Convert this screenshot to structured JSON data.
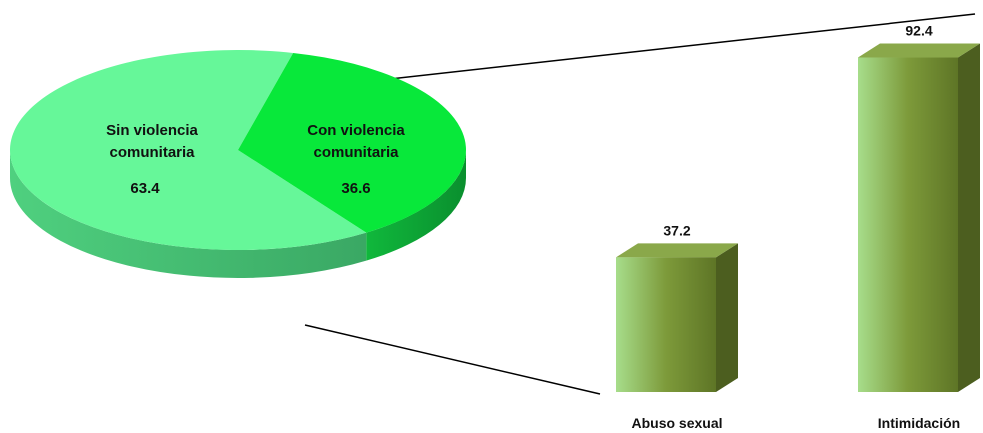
{
  "chart_data": [
    {
      "type": "pie",
      "categories": [
        "Sin violencia comunitaria",
        "Con violencia comunitaria"
      ],
      "label_lines": [
        [
          "Sin violencia",
          "comunitaria"
        ],
        [
          "Con violencia",
          "comunitaria"
        ]
      ],
      "values": [
        63.4,
        36.6
      ],
      "value_labels": [
        "63.4",
        "36.6"
      ],
      "colors": [
        "#66f799",
        "#08e83a"
      ],
      "title": ""
    },
    {
      "type": "bar",
      "categories": [
        "Abuso sexual",
        "Intimidación"
      ],
      "values": [
        37.2,
        92.4
      ],
      "value_labels": [
        "37.2",
        "92.4"
      ],
      "color": "#7d9a3a",
      "title": "",
      "xlabel": "",
      "ylabel": "",
      "ylim": [
        0,
        100
      ],
      "grid": false
    }
  ]
}
